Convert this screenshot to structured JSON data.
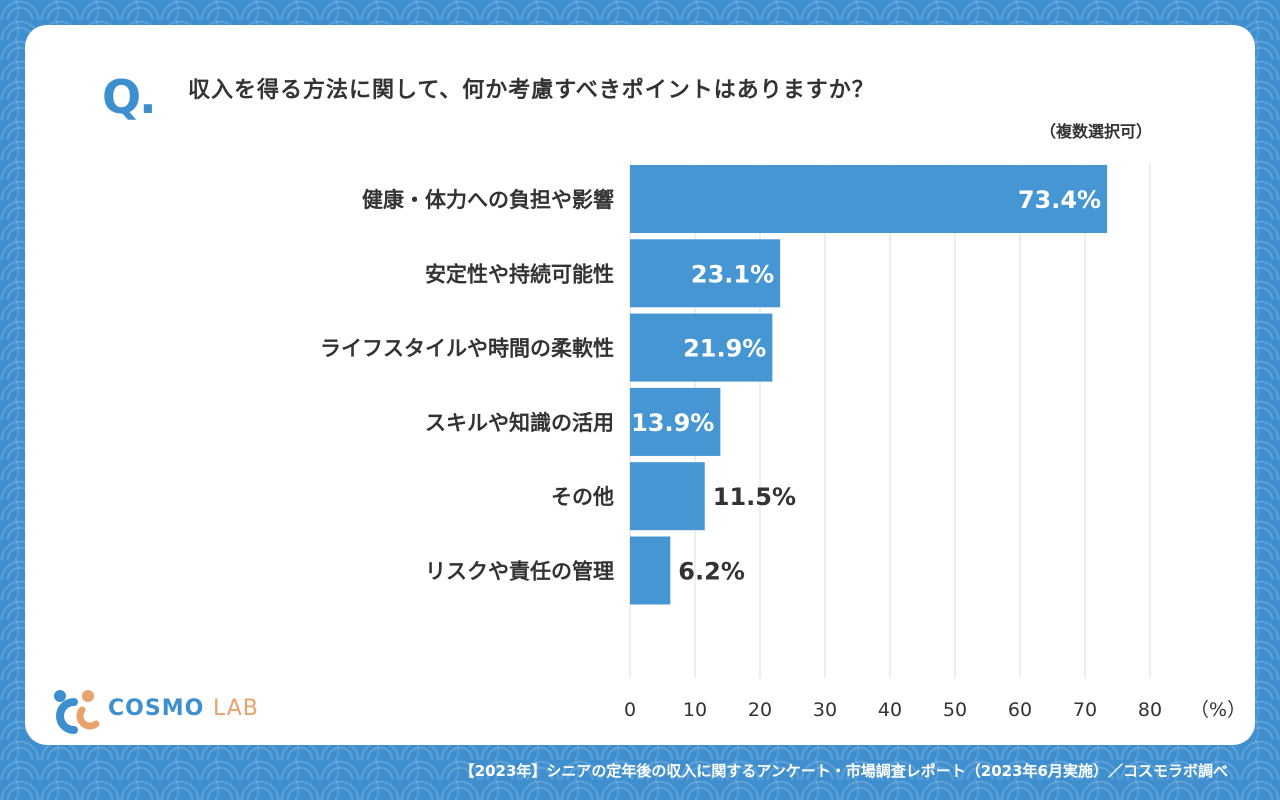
{
  "question": {
    "mark": "Q.",
    "text": "収入を得る方法に関して、何か考慮すべきポイントはありますか？",
    "note": "（複数選択可）"
  },
  "logo": {
    "cosmo": "COSMO",
    "lab": "LAB"
  },
  "footer": "【2023年】シニアの定年後の収入に関するアンケート・市場調査レポート（2023年6月実施）／コスモラボ調べ",
  "colors": {
    "bar": "#4596d3",
    "accent": "#3e8fcf",
    "grid": "#dddddd",
    "text": "#333333"
  },
  "chart_data": {
    "type": "bar",
    "orientation": "horizontal",
    "categories": [
      "健康・体力への負担や影響",
      "安定性や持続可能性",
      "ライフスタイルや時間の柔軟性",
      "スキルや知識の活用",
      "その他",
      "リスクや責任の管理"
    ],
    "values": [
      73.4,
      23.1,
      21.9,
      13.9,
      11.5,
      6.2
    ],
    "value_labels": [
      "73.4%",
      "23.1%",
      "21.9%",
      "13.9%",
      "11.5%",
      "6.2%"
    ],
    "xlim": [
      0,
      80
    ],
    "xticks": [
      "0",
      "10",
      "20",
      "30",
      "40",
      "50",
      "60",
      "70",
      "80"
    ],
    "x_unit": "（%）",
    "grid": true
  }
}
